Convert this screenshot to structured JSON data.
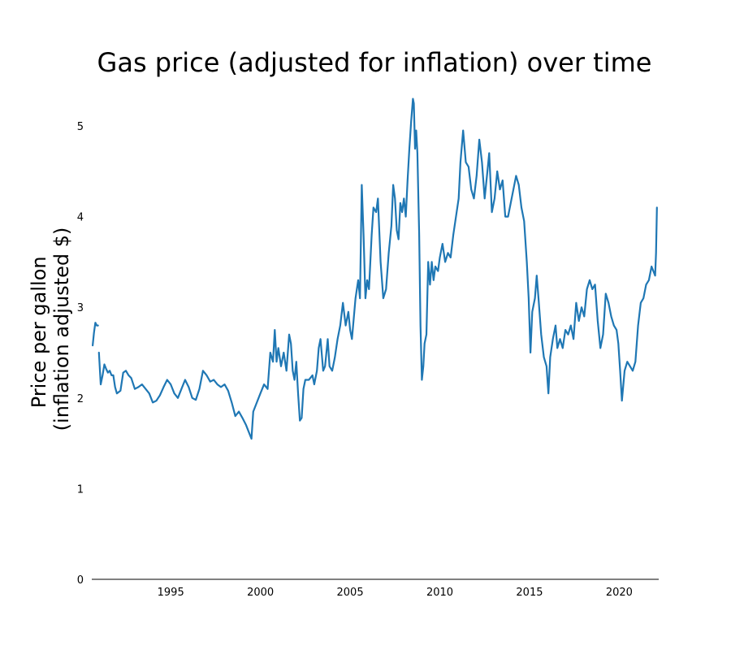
{
  "chart_data": {
    "type": "line",
    "title": "Gas price (adjusted for inflation) over time",
    "xlabel": "",
    "ylabel_lines": [
      "Price per gallon",
      "(inflation adjusted $)"
    ],
    "xlim": [
      1990.6,
      2022.2
    ],
    "ylim": [
      0,
      5.35
    ],
    "xticks": [
      1995,
      2000,
      2005,
      2010,
      2015,
      2020
    ],
    "xtick_labels": [
      "1995",
      "2000",
      "2005",
      "2010",
      "2015",
      "2020"
    ],
    "yticks": [
      0,
      1,
      2,
      3,
      4,
      5
    ],
    "ytick_labels": [
      "0",
      "1",
      "2",
      "3",
      "4",
      "5"
    ],
    "grid": false,
    "line_color": "#1f77b4",
    "series": [
      {
        "segments": [
          [
            [
              1990.65,
              2.58
            ],
            [
              1990.72,
              2.72
            ],
            [
              1990.8,
              2.83
            ],
            [
              1990.88,
              2.8
            ],
            [
              1990.95,
              2.8
            ]
          ],
          [
            [
              1991.0,
              2.5
            ],
            [
              1991.1,
              2.15
            ],
            [
              1991.2,
              2.25
            ],
            [
              1991.3,
              2.37
            ],
            [
              1991.4,
              2.32
            ],
            [
              1991.5,
              2.28
            ],
            [
              1991.6,
              2.3
            ],
            [
              1991.7,
              2.25
            ],
            [
              1991.8,
              2.25
            ],
            [
              1991.9,
              2.12
            ],
            [
              1992.0,
              2.05
            ],
            [
              1992.2,
              2.08
            ],
            [
              1992.35,
              2.28
            ],
            [
              1992.5,
              2.3
            ],
            [
              1992.65,
              2.25
            ],
            [
              1992.8,
              2.22
            ],
            [
              1993.0,
              2.1
            ],
            [
              1993.2,
              2.12
            ],
            [
              1993.4,
              2.15
            ],
            [
              1993.6,
              2.1
            ],
            [
              1993.8,
              2.05
            ],
            [
              1994.0,
              1.95
            ],
            [
              1994.2,
              1.97
            ],
            [
              1994.4,
              2.03
            ],
            [
              1994.6,
              2.12
            ],
            [
              1994.8,
              2.2
            ],
            [
              1995.0,
              2.15
            ],
            [
              1995.2,
              2.05
            ],
            [
              1995.4,
              2.0
            ],
            [
              1995.6,
              2.1
            ],
            [
              1995.8,
              2.2
            ],
            [
              1996.0,
              2.12
            ],
            [
              1996.2,
              2.0
            ],
            [
              1996.4,
              1.98
            ],
            [
              1996.6,
              2.1
            ],
            [
              1996.8,
              2.3
            ],
            [
              1997.0,
              2.25
            ],
            [
              1997.2,
              2.18
            ],
            [
              1997.4,
              2.2
            ],
            [
              1997.6,
              2.15
            ],
            [
              1997.8,
              2.12
            ],
            [
              1998.0,
              2.15
            ],
            [
              1998.2,
              2.08
            ],
            [
              1998.4,
              1.95
            ],
            [
              1998.6,
              1.8
            ],
            [
              1998.8,
              1.85
            ],
            [
              1999.0,
              1.78
            ],
            [
              1999.2,
              1.7
            ],
            [
              1999.4,
              1.6
            ],
            [
              1999.5,
              1.55
            ],
            [
              1999.6,
              1.85
            ],
            [
              1999.8,
              1.95
            ],
            [
              2000.0,
              2.05
            ],
            [
              2000.2,
              2.15
            ],
            [
              2000.4,
              2.1
            ],
            [
              2000.55,
              2.5
            ],
            [
              2000.7,
              2.4
            ],
            [
              2000.8,
              2.75
            ],
            [
              2000.9,
              2.4
            ],
            [
              2001.0,
              2.55
            ],
            [
              2001.15,
              2.35
            ],
            [
              2001.3,
              2.5
            ],
            [
              2001.45,
              2.3
            ],
            [
              2001.6,
              2.7
            ],
            [
              2001.7,
              2.6
            ],
            [
              2001.8,
              2.3
            ],
            [
              2001.9,
              2.2
            ],
            [
              2002.0,
              2.4
            ],
            [
              2002.1,
              2.05
            ],
            [
              2002.2,
              1.75
            ],
            [
              2002.3,
              1.78
            ],
            [
              2002.4,
              2.1
            ],
            [
              2002.5,
              2.2
            ],
            [
              2002.7,
              2.2
            ],
            [
              2002.9,
              2.25
            ],
            [
              2003.0,
              2.15
            ],
            [
              2003.15,
              2.3
            ],
            [
              2003.25,
              2.55
            ],
            [
              2003.35,
              2.65
            ],
            [
              2003.5,
              2.3
            ],
            [
              2003.6,
              2.35
            ],
            [
              2003.75,
              2.65
            ],
            [
              2003.85,
              2.35
            ],
            [
              2004.0,
              2.3
            ],
            [
              2004.15,
              2.45
            ],
            [
              2004.3,
              2.65
            ],
            [
              2004.45,
              2.8
            ],
            [
              2004.6,
              3.05
            ],
            [
              2004.75,
              2.8
            ],
            [
              2004.9,
              2.95
            ],
            [
              2005.0,
              2.75
            ],
            [
              2005.1,
              2.65
            ],
            [
              2005.3,
              3.1
            ],
            [
              2005.45,
              3.3
            ],
            [
              2005.55,
              3.1
            ],
            [
              2005.65,
              4.35
            ],
            [
              2005.75,
              3.8
            ],
            [
              2005.85,
              3.1
            ],
            [
              2005.95,
              3.3
            ],
            [
              2006.05,
              3.2
            ],
            [
              2006.2,
              3.8
            ],
            [
              2006.3,
              4.1
            ],
            [
              2006.45,
              4.05
            ],
            [
              2006.55,
              4.2
            ],
            [
              2006.7,
              3.5
            ],
            [
              2006.85,
              3.1
            ],
            [
              2007.0,
              3.2
            ],
            [
              2007.15,
              3.6
            ],
            [
              2007.3,
              3.9
            ],
            [
              2007.4,
              4.35
            ],
            [
              2007.5,
              4.2
            ],
            [
              2007.6,
              3.85
            ],
            [
              2007.7,
              3.75
            ],
            [
              2007.8,
              4.15
            ],
            [
              2007.9,
              4.05
            ],
            [
              2008.0,
              4.2
            ],
            [
              2008.1,
              4.0
            ],
            [
              2008.2,
              4.4
            ],
            [
              2008.3,
              4.75
            ],
            [
              2008.4,
              5.05
            ],
            [
              2008.5,
              5.3
            ],
            [
              2008.55,
              5.25
            ],
            [
              2008.62,
              4.75
            ],
            [
              2008.68,
              4.95
            ],
            [
              2008.75,
              4.7
            ],
            [
              2008.85,
              3.8
            ],
            [
              2008.92,
              2.8
            ],
            [
              2009.0,
              2.2
            ],
            [
              2009.08,
              2.35
            ],
            [
              2009.15,
              2.6
            ],
            [
              2009.25,
              2.7
            ],
            [
              2009.35,
              3.5
            ],
            [
              2009.45,
              3.25
            ],
            [
              2009.55,
              3.5
            ],
            [
              2009.65,
              3.3
            ],
            [
              2009.75,
              3.45
            ],
            [
              2009.9,
              3.4
            ],
            [
              2010.0,
              3.55
            ],
            [
              2010.15,
              3.7
            ],
            [
              2010.3,
              3.5
            ],
            [
              2010.45,
              3.6
            ],
            [
              2010.6,
              3.55
            ],
            [
              2010.75,
              3.8
            ],
            [
              2010.9,
              4.0
            ],
            [
              2011.05,
              4.2
            ],
            [
              2011.15,
              4.6
            ],
            [
              2011.3,
              4.95
            ],
            [
              2011.45,
              4.6
            ],
            [
              2011.6,
              4.55
            ],
            [
              2011.75,
              4.3
            ],
            [
              2011.9,
              4.2
            ],
            [
              2012.05,
              4.45
            ],
            [
              2012.2,
              4.85
            ],
            [
              2012.35,
              4.6
            ],
            [
              2012.5,
              4.2
            ],
            [
              2012.65,
              4.5
            ],
            [
              2012.75,
              4.7
            ],
            [
              2012.9,
              4.05
            ],
            [
              2013.05,
              4.2
            ],
            [
              2013.2,
              4.5
            ],
            [
              2013.35,
              4.3
            ],
            [
              2013.5,
              4.4
            ],
            [
              2013.65,
              4.0
            ],
            [
              2013.8,
              4.0
            ],
            [
              2013.95,
              4.15
            ],
            [
              2014.1,
              4.3
            ],
            [
              2014.25,
              4.45
            ],
            [
              2014.4,
              4.35
            ],
            [
              2014.55,
              4.1
            ],
            [
              2014.7,
              3.95
            ],
            [
              2014.85,
              3.5
            ],
            [
              2014.95,
              3.1
            ],
            [
              2015.05,
              2.5
            ],
            [
              2015.15,
              2.95
            ],
            [
              2015.3,
              3.1
            ],
            [
              2015.4,
              3.35
            ],
            [
              2015.5,
              3.1
            ],
            [
              2015.65,
              2.7
            ],
            [
              2015.8,
              2.45
            ],
            [
              2015.95,
              2.35
            ],
            [
              2016.05,
              2.05
            ],
            [
              2016.15,
              2.45
            ],
            [
              2016.3,
              2.65
            ],
            [
              2016.45,
              2.8
            ],
            [
              2016.55,
              2.55
            ],
            [
              2016.7,
              2.65
            ],
            [
              2016.85,
              2.55
            ],
            [
              2017.0,
              2.75
            ],
            [
              2017.15,
              2.7
            ],
            [
              2017.3,
              2.8
            ],
            [
              2017.45,
              2.65
            ],
            [
              2017.6,
              3.05
            ],
            [
              2017.75,
              2.85
            ],
            [
              2017.9,
              3.0
            ],
            [
              2018.05,
              2.9
            ],
            [
              2018.2,
              3.2
            ],
            [
              2018.35,
              3.3
            ],
            [
              2018.5,
              3.2
            ],
            [
              2018.65,
              3.25
            ],
            [
              2018.8,
              2.85
            ],
            [
              2018.95,
              2.55
            ],
            [
              2019.1,
              2.7
            ],
            [
              2019.25,
              3.15
            ],
            [
              2019.4,
              3.05
            ],
            [
              2019.55,
              2.9
            ],
            [
              2019.7,
              2.8
            ],
            [
              2019.85,
              2.75
            ],
            [
              2019.95,
              2.6
            ],
            [
              2020.05,
              2.3
            ],
            [
              2020.15,
              1.97
            ],
            [
              2020.3,
              2.3
            ],
            [
              2020.45,
              2.4
            ],
            [
              2020.6,
              2.35
            ],
            [
              2020.75,
              2.3
            ],
            [
              2020.9,
              2.4
            ],
            [
              2021.05,
              2.8
            ],
            [
              2021.2,
              3.05
            ],
            [
              2021.35,
              3.1
            ],
            [
              2021.5,
              3.25
            ],
            [
              2021.65,
              3.3
            ],
            [
              2021.8,
              3.45
            ],
            [
              2021.9,
              3.4
            ],
            [
              2022.0,
              3.35
            ],
            [
              2022.05,
              3.6
            ],
            [
              2022.1,
              4.1
            ]
          ]
        ]
      }
    ]
  }
}
